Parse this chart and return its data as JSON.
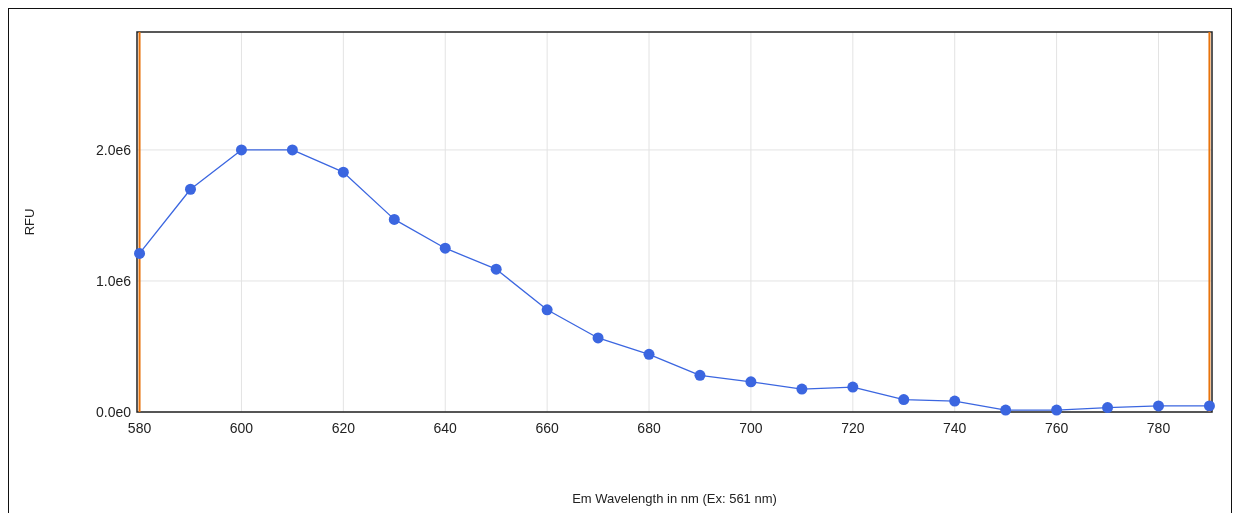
{
  "chart_data": {
    "type": "line",
    "xlabel": "Em Wavelength in nm (Ex: 561 nm)",
    "ylabel": "RFU",
    "x": [
      580,
      590,
      600,
      610,
      620,
      630,
      640,
      650,
      660,
      670,
      680,
      690,
      700,
      710,
      720,
      730,
      740,
      750,
      760,
      770,
      780,
      790
    ],
    "series": [
      {
        "color": "#3b66e0",
        "values": [
          1210000,
          1700000,
          2000000,
          2000000,
          1830000,
          1470000,
          1250000,
          1090000,
          780000,
          565000,
          440000,
          280000,
          230000,
          175000,
          190000,
          95000,
          83000,
          15000,
          15000,
          34000,
          46000,
          46000
        ]
      }
    ],
    "xlim": [
      579.5,
      790.5
    ],
    "xticks": [
      580,
      600,
      620,
      640,
      660,
      680,
      700,
      720,
      740,
      760,
      780
    ],
    "ylim": [
      0,
      2900000
    ],
    "yticks": [
      {
        "value": 0,
        "label": "0.0e0"
      },
      {
        "value": 1000000,
        "label": "1.0e6"
      },
      {
        "value": 2000000,
        "label": "2.0e6"
      }
    ],
    "ref_lines": [
      {
        "axis": "x",
        "value": 580,
        "color": "#e8730c"
      },
      {
        "axis": "x",
        "value": 790,
        "color": "#e8730c"
      }
    ],
    "grid": true,
    "marker": "circle",
    "line_style": "solid"
  }
}
